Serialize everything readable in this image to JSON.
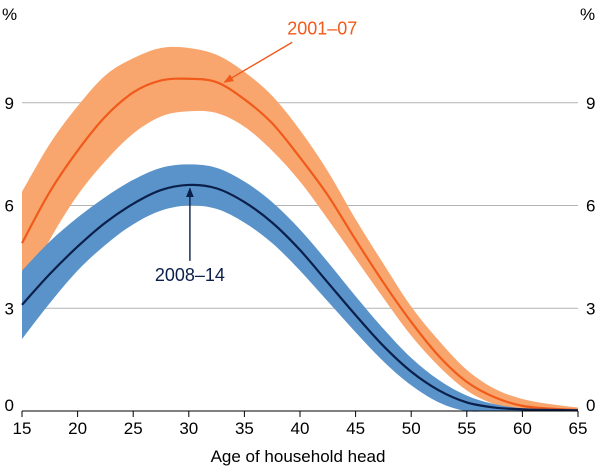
{
  "chart_data": {
    "type": "line",
    "xlabel": "Age of household head",
    "unit_label_left": "%",
    "unit_label_right": "%",
    "xlim": [
      15,
      65
    ],
    "ylim": [
      0,
      12
    ],
    "x_ticks": [
      15,
      20,
      25,
      30,
      35,
      40,
      45,
      50,
      55,
      60,
      65
    ],
    "y_ticks": [
      0,
      3,
      6,
      9
    ],
    "grid": "horizontal",
    "series": [
      {
        "name": "2001–07",
        "label": "2001–07",
        "line_color": "#f05a1a",
        "band_color": "#f9a66e",
        "x": [
          15,
          17.5,
          20,
          22.5,
          25,
          27.5,
          30,
          32.5,
          35,
          37.5,
          40,
          42.5,
          45,
          47.5,
          50,
          52.5,
          55,
          57.5,
          60,
          62.5,
          65
        ],
        "y": [
          4.9,
          6.4,
          7.6,
          8.6,
          9.3,
          9.65,
          9.7,
          9.6,
          9.1,
          8.4,
          7.4,
          6.3,
          5.0,
          3.75,
          2.6,
          1.6,
          0.85,
          0.4,
          0.15,
          0.07,
          0.03
        ],
        "lower": [
          3.4,
          5.0,
          6.3,
          7.3,
          8.1,
          8.6,
          8.75,
          8.7,
          8.3,
          7.6,
          6.7,
          5.6,
          4.45,
          3.3,
          2.2,
          1.3,
          0.6,
          0.2,
          0.05,
          0.0,
          0.0
        ],
        "upper": [
          6.4,
          7.8,
          8.9,
          9.8,
          10.3,
          10.6,
          10.6,
          10.4,
          9.9,
          9.2,
          8.2,
          7.0,
          5.6,
          4.3,
          3.05,
          2.05,
          1.2,
          0.65,
          0.35,
          0.2,
          0.1
        ]
      },
      {
        "name": "2008–14",
        "label": "2008–14",
        "line_color": "#0b1f4b",
        "band_color": "#5a93c9",
        "x": [
          15,
          17.5,
          20,
          22.5,
          25,
          27.5,
          30,
          32.5,
          35,
          37.5,
          40,
          42.5,
          45,
          47.5,
          50,
          52.5,
          55,
          57.5,
          60,
          62.5,
          65
        ],
        "y": [
          3.1,
          4.0,
          4.8,
          5.5,
          6.05,
          6.45,
          6.6,
          6.5,
          6.1,
          5.5,
          4.7,
          3.75,
          2.8,
          1.9,
          1.15,
          0.6,
          0.25,
          0.1,
          0.05,
          0.03,
          0.02
        ],
        "lower": [
          2.1,
          3.15,
          4.1,
          4.85,
          5.45,
          5.85,
          6.0,
          5.9,
          5.5,
          4.9,
          4.1,
          3.2,
          2.3,
          1.45,
          0.75,
          0.25,
          0.0,
          0.0,
          0.0,
          0.0,
          0.0
        ],
        "upper": [
          4.1,
          4.95,
          5.65,
          6.25,
          6.75,
          7.1,
          7.2,
          7.1,
          6.7,
          6.1,
          5.3,
          4.35,
          3.35,
          2.4,
          1.55,
          0.9,
          0.45,
          0.2,
          0.08,
          0.05,
          0.03
        ]
      }
    ],
    "annotations": [
      {
        "text": "2001–07",
        "series": "2001–07",
        "color": "#f05a1a",
        "text_at": [
          42,
          11.0
        ],
        "arrow_to": [
          33.2,
          9.6
        ]
      },
      {
        "text": "2008–14",
        "series": "2008–14",
        "color": "#0b1f4b",
        "text_at": [
          30.1,
          3.8
        ],
        "arrow_to": [
          30.1,
          6.5
        ]
      }
    ],
    "colors": {
      "grid": "#b3b3b3",
      "axis": "#000000",
      "background": "#ffffff"
    }
  }
}
